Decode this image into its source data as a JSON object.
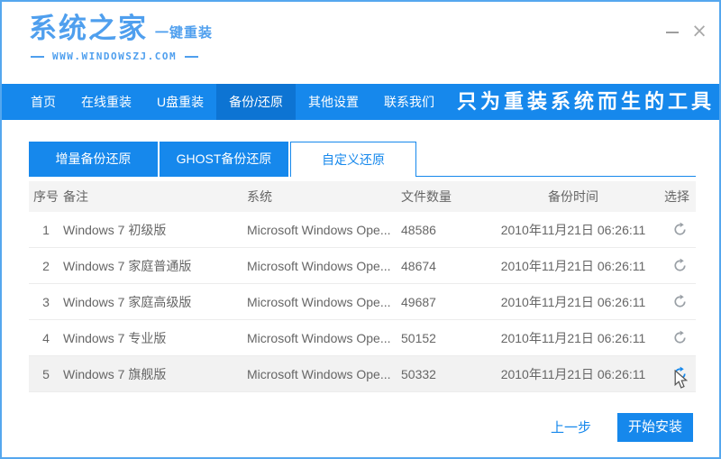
{
  "colors": {
    "primary_blue": "#1688ec",
    "nav_active_blue": "#0d74d3",
    "logo_blue": "#4f9fee",
    "window_border": "#55a7ee",
    "table_header_bg": "#f4f4f4",
    "row_highlight_bg": "#f2f2f2",
    "row_divider": "#ececec",
    "text_gray": "#666666",
    "icon_gray": "#9aa0a6"
  },
  "logo": {
    "title": "系统之家",
    "subtitle": "一键重装",
    "website": "WWW.WINDOWSZJ.COM"
  },
  "window_controls": {
    "minimize_icon": "minus-icon",
    "close_icon": "x-icon",
    "close_glyph": "×"
  },
  "nav": {
    "items": [
      {
        "label": "首页",
        "active": false
      },
      {
        "label": "在线重装",
        "active": false
      },
      {
        "label": "U盘重装",
        "active": false
      },
      {
        "label": "备份/还原",
        "active": true
      },
      {
        "label": "其他设置",
        "active": false
      },
      {
        "label": "联系我们",
        "active": false
      }
    ],
    "slogan": "只为重装系统而生的工具"
  },
  "tabs": [
    {
      "label": "增量备份还原",
      "active": false
    },
    {
      "label": "GHOST备份还原",
      "active": false
    },
    {
      "label": "自定义还原",
      "active": true
    }
  ],
  "table": {
    "headers": [
      "序号",
      "备注",
      "系统",
      "文件数量",
      "备份时间",
      "选择"
    ],
    "rows": [
      {
        "no": "1",
        "remark": "Windows 7 初级版",
        "system": "Microsoft Windows Ope...",
        "files": "48586",
        "time": "2010年11月21日 06:26:11",
        "selected": false,
        "highlighted": false
      },
      {
        "no": "2",
        "remark": "Windows 7 家庭普通版",
        "system": "Microsoft Windows Ope...",
        "files": "48674",
        "time": "2010年11月21日 06:26:11",
        "selected": false,
        "highlighted": false
      },
      {
        "no": "3",
        "remark": "Windows 7 家庭高级版",
        "system": "Microsoft Windows Ope...",
        "files": "49687",
        "time": "2010年11月21日 06:26:11",
        "selected": false,
        "highlighted": false
      },
      {
        "no": "4",
        "remark": "Windows 7 专业版",
        "system": "Microsoft Windows Ope...",
        "files": "50152",
        "time": "2010年11月21日 06:26:11",
        "selected": false,
        "highlighted": false
      },
      {
        "no": "5",
        "remark": "Windows 7 旗舰版",
        "system": "Microsoft Windows Ope...",
        "files": "50332",
        "time": "2010年11月21日 06:26:11",
        "selected": true,
        "highlighted": true
      }
    ]
  },
  "footer": {
    "back": "上一步",
    "install": "开始安装"
  }
}
